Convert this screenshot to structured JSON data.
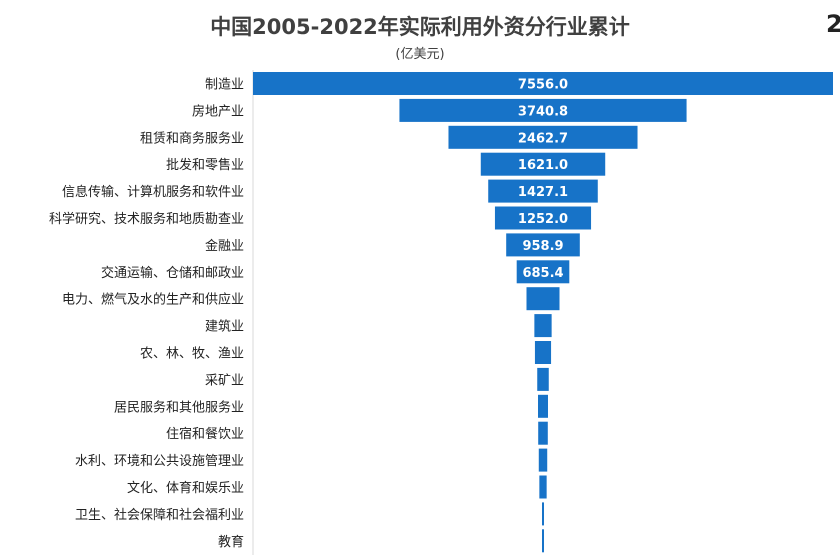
{
  "chart_data": {
    "type": "bar",
    "orientation": "horizontal",
    "layout": "centered-funnel",
    "title": "中国2005-2022年实际利用外资分行业累计",
    "subtitle": "(亿美元)",
    "categories": [
      "制造业",
      "房地产业",
      "租赁和商务服务业",
      "批发和零售业",
      "信息传输、计算机服务和软件业",
      "科学研究、技术服务和地质勘查业",
      "金融业",
      "交通运输、仓储和邮政业",
      "电力、燃气及水的生产和供应业",
      "建筑业",
      "农、林、牧、渔业",
      "采矿业",
      "居民服务和其他服务业",
      "住宿和餐饮业",
      "水利、环境和公共设施管理业",
      "文化、体育和娱乐业",
      "卫生、社会保障和社会福利业",
      "教育"
    ],
    "values": [
      7556.0,
      3740.8,
      2462.7,
      1621.0,
      1427.1,
      1252.0,
      958.9,
      685.4,
      430,
      225,
      210,
      150,
      130,
      125,
      110,
      95,
      15,
      10
    ],
    "value_labels": [
      "7556.0",
      "3740.8",
      "2462.7",
      "1621.0",
      "1427.1",
      "1252.0",
      "958.9",
      "685.4",
      "",
      "",
      "",
      "",
      "",
      "",
      "",
      "",
      "",
      ""
    ],
    "bar_color": "#1773C8",
    "label_color": "#FFFFFF",
    "grid": false,
    "legend": "none"
  },
  "corner_text": "2"
}
